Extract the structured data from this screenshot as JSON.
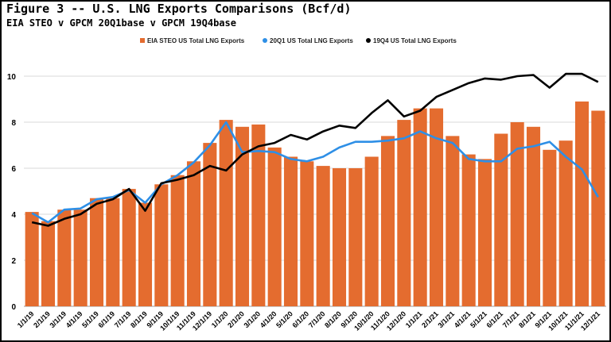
{
  "chart_data": {
    "type": "bar",
    "title": "Figure 3 -- U.S. LNG Exports Comparisons (Bcf/d)",
    "subtitle": "EIA STEO v GPCM 20Q1base v GPCM 19Q4base",
    "ylim": [
      0,
      11
    ],
    "yticks": [
      0,
      2,
      4,
      6,
      8,
      10
    ],
    "grid": true,
    "legend_position": "top",
    "categories": [
      "1/1/19",
      "2/1/19",
      "3/1/19",
      "4/1/19",
      "5/1/19",
      "6/1/19",
      "7/1/19",
      "8/1/19",
      "9/1/19",
      "10/1/19",
      "11/1/19",
      "12/1/19",
      "1/1/20",
      "2/1/20",
      "3/1/20",
      "4/1/20",
      "5/1/20",
      "6/1/20",
      "7/1/20",
      "8/1/20",
      "9/1/20",
      "10/1/20",
      "11/1/20",
      "12/1/20",
      "1/1/21",
      "2/1/21",
      "3/1/21",
      "4/1/21",
      "5/1/21",
      "6/1/21",
      "7/1/21",
      "8/1/21",
      "9/1/21",
      "10/1/21",
      "11/1/21",
      "12/1/21"
    ],
    "series": [
      {
        "name": "EIA STEO US Total LNG Exports",
        "kind": "bar",
        "color": "#E46C2F",
        "values": [
          4.1,
          3.7,
          4.2,
          4.2,
          4.7,
          4.7,
          5.1,
          4.5,
          5.3,
          5.7,
          6.3,
          7.1,
          8.1,
          7.8,
          7.9,
          6.9,
          6.5,
          6.3,
          6.1,
          6.0,
          6.0,
          6.5,
          7.4,
          8.1,
          8.6,
          8.6,
          7.4,
          6.6,
          6.4,
          7.5,
          8.0,
          7.8,
          6.8,
          7.2,
          8.9,
          8.5
        ]
      },
      {
        "name": "20Q1 US Total LNG Exports",
        "kind": "line",
        "color": "#2E8FE6",
        "values": [
          4.05,
          3.65,
          4.2,
          4.25,
          4.65,
          4.75,
          5.05,
          4.5,
          5.3,
          5.7,
          6.25,
          7.0,
          8.0,
          6.7,
          6.75,
          6.7,
          6.4,
          6.3,
          6.5,
          6.9,
          7.15,
          7.15,
          7.2,
          7.3,
          7.6,
          7.3,
          7.1,
          6.4,
          6.3,
          6.3,
          6.85,
          6.95,
          7.15,
          6.5,
          5.95,
          4.75
        ]
      },
      {
        "name": "19Q4 US Total LNG Exports",
        "kind": "line",
        "color": "#000000",
        "values": [
          3.65,
          3.5,
          3.8,
          4.0,
          4.45,
          4.65,
          5.1,
          4.15,
          5.35,
          5.5,
          5.7,
          6.1,
          5.9,
          6.6,
          6.95,
          7.1,
          7.45,
          7.25,
          7.6,
          7.85,
          7.75,
          8.4,
          8.95,
          8.25,
          8.5,
          9.1,
          9.4,
          9.7,
          9.9,
          9.85,
          10.0,
          10.05,
          9.5,
          10.1,
          10.1,
          9.75
        ]
      }
    ]
  }
}
